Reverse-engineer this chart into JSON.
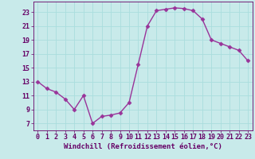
{
  "x": [
    0,
    1,
    2,
    3,
    4,
    5,
    6,
    7,
    8,
    9,
    10,
    11,
    12,
    13,
    14,
    15,
    16,
    17,
    18,
    19,
    20,
    21,
    22,
    23
  ],
  "y": [
    13,
    12,
    11.5,
    10.5,
    9,
    11,
    7,
    8,
    8.2,
    8.5,
    10,
    15.5,
    21,
    23.2,
    23.4,
    23.6,
    23.5,
    23.2,
    22,
    19,
    18.5,
    18,
    17.5,
    16
  ],
  "line_color": "#993399",
  "marker": "D",
  "markersize": 2.5,
  "linewidth": 1.0,
  "background_color": "#c8eaea",
  "grid_color": "#aadddd",
  "xlabel": "Windchill (Refroidissement éolien,°C)",
  "xlabel_fontsize": 6.5,
  "tick_fontsize": 6,
  "xlim": [
    -0.5,
    23.5
  ],
  "ylim": [
    6,
    24.5
  ],
  "yticks": [
    7,
    9,
    11,
    13,
    15,
    17,
    19,
    21,
    23
  ],
  "xticks": [
    0,
    1,
    2,
    3,
    4,
    5,
    6,
    7,
    8,
    9,
    10,
    11,
    12,
    13,
    14,
    15,
    16,
    17,
    18,
    19,
    20,
    21,
    22,
    23
  ],
  "tick_color": "#660066",
  "spine_color": "#660066"
}
